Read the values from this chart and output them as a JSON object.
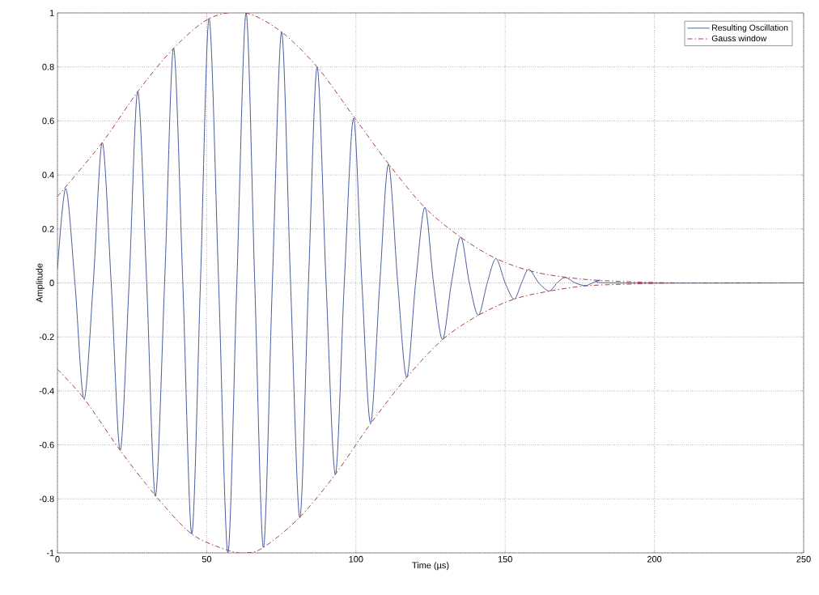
{
  "chart_data": {
    "type": "line",
    "xlabel": "Time (µs)",
    "ylabel": "Amplitude",
    "xlim": [
      0,
      250
    ],
    "ylim": [
      -1,
      1
    ],
    "xticks": [
      0,
      50,
      100,
      150,
      200,
      250
    ],
    "yticks": [
      -1,
      -0.8,
      -0.6,
      -0.4,
      -0.2,
      0,
      0.2,
      0.4,
      0.6,
      0.8,
      1
    ],
    "grid": true,
    "legend": "top right",
    "series": [
      {
        "name": "Resulting Oscillation",
        "color": "#4a5aa0",
        "line_style": "solid",
        "x": [
          0,
          2.8,
          5.85,
          8.9,
          12,
          15,
          18,
          21,
          24,
          26.9,
          29.9,
          32.8,
          35.9,
          38.9,
          42,
          45,
          47.9,
          50.8,
          54,
          57.1,
          60.1,
          63.2,
          66.1,
          69,
          72,
          75.1,
          78.1,
          81.2,
          84.1,
          87,
          90,
          93.1,
          96.1,
          99.2,
          102,
          104.9,
          108,
          110.9,
          114,
          117,
          120,
          123.1,
          126,
          129,
          132,
          135.1,
          138,
          141,
          144,
          146.9,
          150,
          153,
          155.5,
          157.9,
          161.3,
          164.7,
          167.4,
          170.1,
          173.5,
          176.8,
          179.3,
          181.8,
          186,
          250
        ],
        "values": [
          0.05,
          0.35,
          0,
          -0.43,
          0,
          0.52,
          0,
          -0.62,
          0,
          0.71,
          0,
          -0.79,
          0,
          0.87,
          0,
          -0.93,
          0,
          0.98,
          0,
          -1.0,
          0,
          1.0,
          0,
          -0.98,
          0,
          0.93,
          0,
          -0.87,
          0,
          0.8,
          0,
          -0.71,
          0,
          0.61,
          0,
          -0.52,
          0,
          0.44,
          0,
          -0.35,
          0,
          0.28,
          0,
          -0.21,
          0,
          0.17,
          0,
          -0.12,
          0,
          0.09,
          0,
          -0.06,
          0,
          0.05,
          0,
          -0.03,
          0,
          0.02,
          0,
          -0.01,
          0,
          0.01,
          0,
          0
        ]
      },
      {
        "name": "Gauss window",
        "color": "#a04050",
        "line_style": "dashed",
        "x": [
          0,
          15,
          27,
          39,
          51,
          63,
          75,
          87,
          99,
          111,
          123,
          135,
          147,
          160,
          175,
          190,
          210,
          250
        ],
        "values": [
          0.32,
          0.52,
          0.71,
          0.87,
          0.98,
          1.0,
          0.93,
          0.8,
          0.62,
          0.44,
          0.28,
          0.17,
          0.09,
          0.04,
          0.015,
          0.005,
          0,
          0
        ]
      },
      {
        "color": "#a04050",
        "line_style": "dashed",
        "x": [
          0,
          9,
          21,
          33,
          45,
          57,
          63,
          69,
          81,
          93,
          105,
          117,
          129,
          141,
          153,
          165,
          177,
          190,
          210,
          250
        ],
        "values": [
          -0.32,
          -0.43,
          -0.62,
          -0.79,
          -0.93,
          -0.99,
          -1.0,
          -0.98,
          -0.87,
          -0.71,
          -0.52,
          -0.35,
          -0.21,
          -0.12,
          -0.06,
          -0.03,
          -0.011,
          -0.005,
          0,
          0
        ]
      }
    ]
  }
}
